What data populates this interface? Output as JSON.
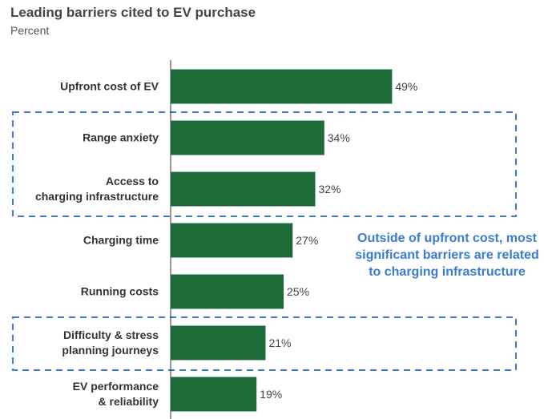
{
  "chart_data": {
    "type": "bar",
    "orientation": "horizontal",
    "title": "Leading barriers cited to EV purchase",
    "subtitle": "Percent",
    "categories": [
      "Upfront cost of EV",
      "Range anxiety",
      "Access to charging infrastructure",
      "Charging time",
      "Running costs",
      "Difficulty & stress planning journeys",
      "EV performance & reliability"
    ],
    "values": [
      49,
      34,
      32,
      27,
      25,
      21,
      19
    ],
    "value_labels": [
      "49%",
      "34%",
      "32%",
      "27%",
      "25%",
      "21%",
      "19%"
    ],
    "color": "#1e6b3a",
    "annotation": "Outside of upfront cost, most significant barriers are related to charging infrastructure"
  }
}
